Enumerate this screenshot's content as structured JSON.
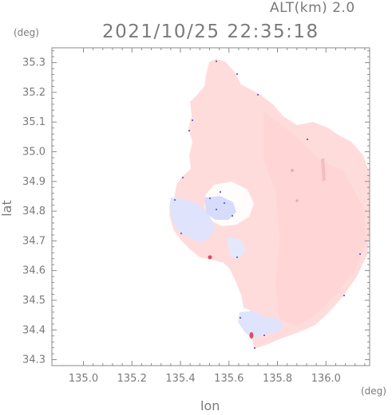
{
  "header": {
    "altitude_label": "ALT(km) 2.0",
    "timestamp": "2021/10/25 22:35:18"
  },
  "axes": {
    "lat_unit": "(deg)",
    "lon_unit": "(deg)",
    "lat_label": "lat",
    "lon_label": "lon",
    "lat_ticks": [
      "35.3",
      "35.2",
      "35.1",
      "35.0",
      "34.9",
      "34.8",
      "34.7",
      "34.6",
      "34.5",
      "34.4",
      "34.3"
    ],
    "lon_ticks": [
      "135.0",
      "135.2",
      "135.4",
      "135.6",
      "135.8",
      "136.0"
    ]
  },
  "chart_data": {
    "type": "heatmap",
    "description_field": "Doppler radar scan (velocity)",
    "xlim": [
      134.87,
      136.18
    ],
    "ylim": [
      34.28,
      35.35
    ],
    "colors": {
      "receding": "#ffd9d9",
      "approaching": "#dde3ff",
      "strong_receding": "#e05570",
      "strong_approaching": "#7070e0"
    }
  }
}
